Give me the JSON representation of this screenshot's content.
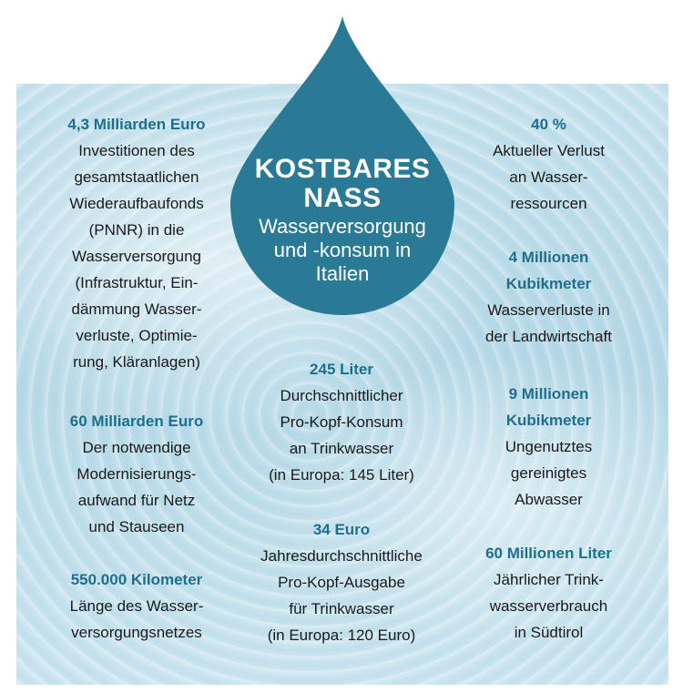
{
  "title": {
    "line1": "KOSTBARES",
    "line2": "NASS",
    "subtitle": "Wasserversorgung\nund -konsum in\nItalien"
  },
  "colors": {
    "drop": "#2a7a95",
    "accent": "#1e6f8c",
    "text": "#1a1a1a"
  },
  "left": [
    {
      "value": "4,3 Milliarden Euro",
      "desc": "Investitionen des\ngesamtstaatlichen\nWiederaufbaufonds\n(PNNR) in die\nWasserversorgung\n(Infrastruktur, Ein-\ndämmung Wasser-\nverluste, Optimie-\nrung, Kläranlagen)"
    },
    {
      "value": "60 Milliarden Euro",
      "desc": "Der notwendige\nModernisierungs-\naufwand für Netz\nund Stauseen"
    },
    {
      "value": "550.000 Kilometer",
      "desc": "Länge des Wasser-\nversorgungsnetzes"
    }
  ],
  "middle": [
    {
      "value": "245 Liter",
      "desc": "Durchschnittlicher\nPro-Kopf-Konsum\nan Trinkwasser\n(in Europa: 145 Liter)"
    },
    {
      "value": "34 Euro",
      "desc": "Jahresdurchschnittliche\nPro-Kopf-Ausgabe\nfür Trinkwasser\n(in Europa: 120 Euro)"
    }
  ],
  "right": [
    {
      "value": "40 %",
      "desc": "Aktueller Verlust\nan Wasser-\nressourcen"
    },
    {
      "value": "4 Millionen\nKubikmeter",
      "desc": "Wasserverluste in\nder Landwirtschaft"
    },
    {
      "value": "9 Millionen\nKubikmeter",
      "desc": "Ungenutztes\ngereinigtes\nAbwasser"
    },
    {
      "value": "60 Millionen Liter",
      "desc": "Jährlicher Trink-\nwasserverbrauch\nin Südtirol"
    }
  ]
}
